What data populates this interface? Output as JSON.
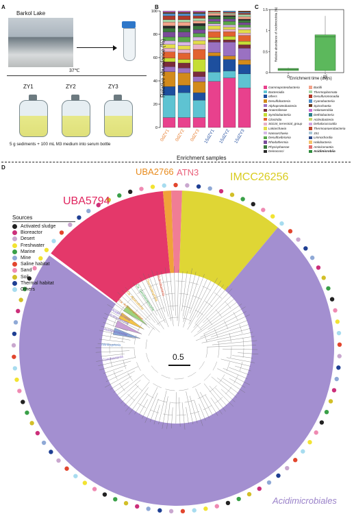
{
  "panelA": {
    "label": "A",
    "lake": "Barkol Lake",
    "temp": "37℃",
    "bottles": [
      "ZY1",
      "ZY2",
      "ZY3"
    ],
    "caption": "5 g sediments + 100 mL M3 medium into serum bottle"
  },
  "panelB": {
    "label": "B",
    "ylabel": "Relative abundance (%)",
    "xlabel": "Enrichment samples",
    "ticks": [
      "0",
      "20",
      "40",
      "60",
      "80",
      "100"
    ]
  },
  "panelC": {
    "label": "C",
    "ylabel": "Relative abundance of Acidimicrobiia (%)",
    "xlabel": "Enrichment time (days)"
  },
  "panelD": {
    "label": "D",
    "scale": "0.5",
    "clades": [
      "UBA5794",
      "UBA2766",
      "ATN3",
      "IMCC26256",
      "Acidimicrobiales"
    ],
    "sources_title": "Sources",
    "inner_labels": [
      "Acidimicrobiia",
      "Ca. Actinomarinidae",
      "Ca. Aquicultoria",
      "Ca. Geothermincolia",
      "Thermoleophilia",
      "Rubrobacteria",
      "Coriobacteriia",
      "Nitriliruptoria",
      "Acidimicrobidae",
      "Actinomycetia"
    ]
  },
  "chart_data": {
    "type": "bar",
    "title": "",
    "xlabel": "Enrichment samples",
    "ylabel": "Relative abundance (%)",
    "ylim": [
      0,
      100
    ],
    "categories": [
      "0dZY1",
      "0dZY2",
      "0dZY3",
      "15dZY1",
      "15dZY2",
      "15dZY3"
    ],
    "series": [
      {
        "name": "Gammaproteobacteria",
        "color": "#e8418d",
        "values": [
          8,
          8,
          8,
          40,
          43,
          34
        ]
      },
      {
        "name": "Bacteroidia",
        "color": "#5ec3d2",
        "values": [
          18,
          20,
          14,
          8,
          6,
          12
        ]
      },
      {
        "name": "others",
        "color": "#1d4f9e",
        "values": [
          7,
          6,
          6,
          14,
          10,
          8
        ]
      },
      {
        "name": "Desulfobacteria",
        "color": "#d28a1b",
        "values": [
          12,
          10,
          9,
          3,
          3,
          4
        ]
      },
      {
        "name": "Alphaproteobacteria",
        "color": "#9a71c2",
        "values": [
          4,
          4,
          4,
          9,
          12,
          10
        ]
      },
      {
        "name": "Anaerolineae",
        "color": "#7b2c3a",
        "values": [
          4,
          4,
          4,
          2,
          2,
          3
        ]
      },
      {
        "name": "Symbiobacteriia",
        "color": "#c5dd35",
        "values": [
          3,
          3,
          10,
          2,
          3,
          3
        ]
      },
      {
        "name": "Clostridia",
        "color": "#e2622f",
        "values": [
          5,
          5,
          8,
          5,
          4,
          5
        ]
      },
      {
        "name": "S0134_terrestrial_group",
        "color": "#e8b0c8",
        "values": [
          3,
          3,
          4,
          2,
          2,
          2
        ]
      },
      {
        "name": "Lokiarchaeia",
        "color": "#e3dd4b",
        "values": [
          3,
          3,
          3,
          3,
          2,
          3
        ]
      },
      {
        "name": "Nanoarchaeia",
        "color": "#d7b8e6",
        "values": [
          3,
          3,
          3,
          2,
          2,
          2
        ]
      },
      {
        "name": "Desulfovibrionia",
        "color": "#5aa84a",
        "values": [
          3,
          4,
          3,
          2,
          3,
          2
        ]
      },
      {
        "name": "Rhodothermia",
        "color": "#7a4b9a",
        "values": [
          4,
          4,
          3,
          2,
          2,
          2
        ]
      },
      {
        "name": "Phycisphaerae",
        "color": "#3c7a3d",
        "values": [
          3,
          3,
          3,
          2,
          2,
          2
        ]
      },
      {
        "name": "Deinococci",
        "color": "#2b2b2b",
        "values": [
          2,
          2,
          2,
          1,
          1,
          1
        ]
      },
      {
        "name": "Bacilli",
        "color": "#f3a38a",
        "values": [
          3,
          3,
          2,
          2,
          1,
          2
        ]
      },
      {
        "name": "Thermoplasmata",
        "color": "#a5d6a7",
        "values": [
          2,
          2,
          2,
          1,
          1,
          2
        ]
      },
      {
        "name": "Desulfuromonadia",
        "color": "#b23a2a",
        "values": [
          3,
          3,
          2,
          1,
          1,
          1
        ]
      },
      {
        "name": "Cyanobacteriia",
        "color": "#4f8fc9",
        "values": [
          2,
          2,
          2,
          0,
          1,
          1
        ]
      },
      {
        "name": "Spirochaetia",
        "color": "#6d3b1d",
        "values": [
          1,
          1,
          1,
          0,
          0,
          1
        ]
      },
      {
        "name": "Halanaerobiia",
        "color": "#cc6ad1",
        "values": [
          1,
          1,
          1,
          0,
          0,
          0
        ]
      }
    ],
    "panel_c": {
      "type": "box",
      "categories": [
        "0",
        "15"
      ],
      "xlabel": "Enrichment time (days)",
      "ylabel": "Relative abundance of Acidimicrobiia (%)",
      "boxes": [
        {
          "x": "0",
          "q1": 0.05,
          "median": 0.08,
          "q3": 0.1,
          "min": 0.04,
          "max": 0.12
        },
        {
          "x": "15",
          "q1": 0.05,
          "median": 0.85,
          "q3": 0.9,
          "min": 0.02,
          "max": 1.35
        }
      ],
      "yticks": [
        "0",
        "0.5",
        "1",
        "1.5"
      ],
      "ylim": [
        0,
        1.5
      ]
    }
  },
  "legend": [
    {
      "name": "Gammaproteobacteria",
      "color": "#e8418d"
    },
    {
      "name": "Bacilli",
      "color": "#f3a38a"
    },
    {
      "name": "Bacteroidia",
      "color": "#5ec3d2"
    },
    {
      "name": "Thermoplasmata",
      "color": "#a5d6a7"
    },
    {
      "name": "others",
      "color": "#1d4f9e"
    },
    {
      "name": "Desulfuromonadia",
      "color": "#b23a2a"
    },
    {
      "name": "Desulfobacteria",
      "color": "#d28a1b"
    },
    {
      "name": "Cyanobacteriia",
      "color": "#4f8fc9"
    },
    {
      "name": "Alphaproteobacteria",
      "color": "#9a71c2"
    },
    {
      "name": "Spirochaetia",
      "color": "#6d3b1d"
    },
    {
      "name": "Anaerolineae",
      "color": "#7b2c3a"
    },
    {
      "name": "Halanaerobiia",
      "color": "#cc6ad1"
    },
    {
      "name": "Symbiobacteriia",
      "color": "#c5dd35"
    },
    {
      "name": "Dethiobacteria",
      "color": "#2a7f8c"
    },
    {
      "name": "Clostridia",
      "color": "#e2622f"
    },
    {
      "name": "Actinobacteria",
      "color": "#c6d66c"
    },
    {
      "name": "S0134_terrestrial_group",
      "color": "#e8b0c8"
    },
    {
      "name": "Dehalococcoidia",
      "color": "#d0a4df"
    },
    {
      "name": "Lokiarchaeia",
      "color": "#e3dd4b"
    },
    {
      "name": "Thermoanaerobacteria",
      "color": "#bf4a2f"
    },
    {
      "name": "Nanoarchaeia",
      "color": "#d7b8e6"
    },
    {
      "name": "JS1",
      "color": "#a9c7d6"
    },
    {
      "name": "Desulfovibrionia",
      "color": "#5aa84a"
    },
    {
      "name": "Limnochordia",
      "color": "#2f4b8a"
    },
    {
      "name": "Rhodothermia",
      "color": "#7a4b9a"
    },
    {
      "name": "Halobacteria",
      "color": "#f5c36b"
    },
    {
      "name": "Phycisphaerae",
      "color": "#3c7a3d"
    },
    {
      "name": "Aminicenantia",
      "color": "#e36f6f"
    },
    {
      "name": "Deinococci",
      "color": "#2b2b2b"
    },
    {
      "name": "Acidimicrobiia",
      "color": "#2e8b3c"
    }
  ],
  "sources": [
    {
      "name": "Activated sludge",
      "color": "#222222"
    },
    {
      "name": "Bioreactor",
      "color": "#cc2f7a"
    },
    {
      "name": "Desert",
      "color": "#c9a7cf"
    },
    {
      "name": "Freshwater",
      "color": "#f2e332"
    },
    {
      "name": "Marine",
      "color": "#3aa048"
    },
    {
      "name": "Mine",
      "color": "#8fa9d6"
    },
    {
      "name": "Saline habitat",
      "color": "#e2462e"
    },
    {
      "name": "Sand",
      "color": "#ef8ab2"
    },
    {
      "name": "Soil",
      "color": "#d2bf28"
    },
    {
      "name": "Thermal habitat",
      "color": "#1f3f93"
    },
    {
      "name": "Others",
      "color": "#a7dcef"
    }
  ]
}
